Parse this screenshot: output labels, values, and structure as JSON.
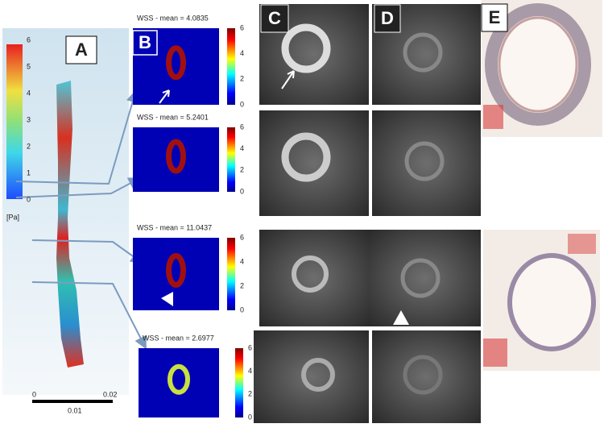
{
  "panels": {
    "A": {
      "label": "A",
      "colorbar_ticks": [
        6,
        5,
        4,
        3,
        2,
        1,
        0
      ],
      "unit": "[Pa]",
      "scale_labels": {
        "start": "0",
        "end": "0.02",
        "middle": "0.01"
      }
    },
    "B": {
      "label": "B",
      "maps": [
        {
          "title": "WSS - mean = 4.0835",
          "colorbar_ticks": [
            6,
            4,
            2,
            0
          ]
        },
        {
          "title": "WSS - mean = 5.2401",
          "colorbar_ticks": [
            6,
            4,
            2,
            0
          ]
        },
        {
          "title": "WSS - mean = 11.0437",
          "colorbar_ticks": [
            6,
            4,
            2,
            0
          ]
        },
        {
          "title": "WSS - mean = 2.6977",
          "colorbar_ticks": [
            6,
            4,
            2,
            0
          ]
        }
      ]
    },
    "C": {
      "label": "C"
    },
    "D": {
      "label": "D"
    },
    "E": {
      "label": "E"
    }
  }
}
